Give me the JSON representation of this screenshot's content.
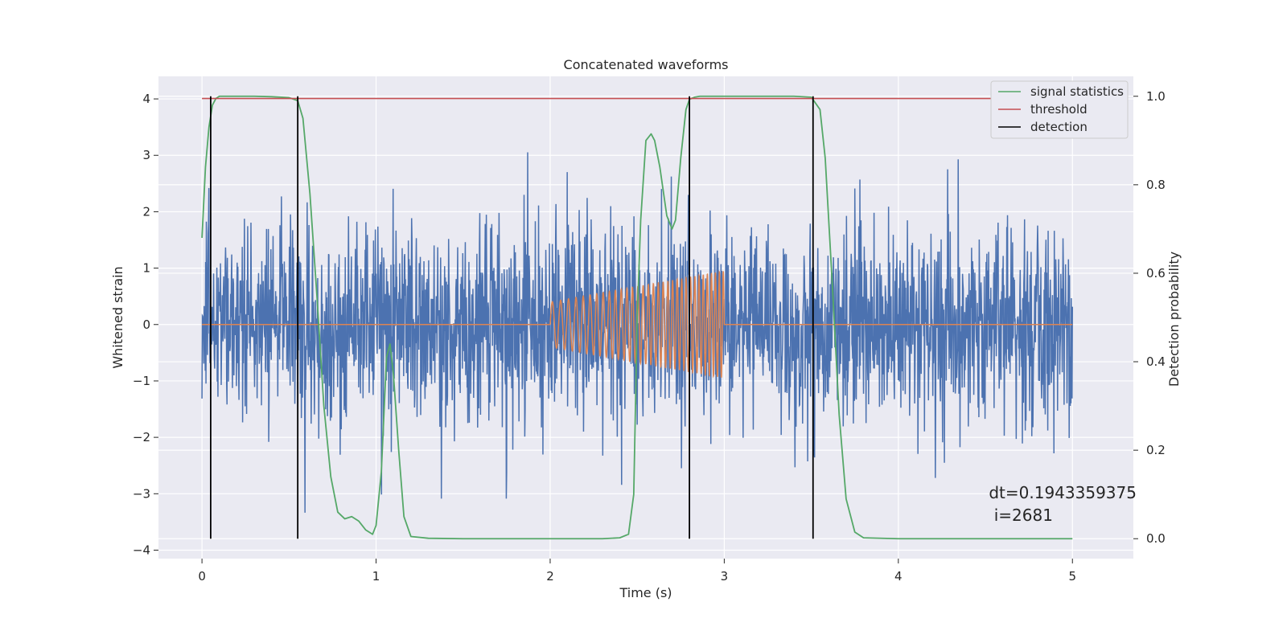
{
  "chart_data": {
    "type": "line",
    "title": "Concatenated waveforms",
    "xlabel": "Time (s)",
    "ylabel": "Whitened strain",
    "y2label": "Detection probability",
    "xlim": [
      -0.25,
      5.35
    ],
    "ylim": [
      -4.15,
      4.4
    ],
    "y2lim": [
      -0.045,
      1.045
    ],
    "xticks": [
      0,
      1,
      2,
      3,
      4,
      5
    ],
    "xtick_labels": [
      "0",
      "1",
      "2",
      "3",
      "4",
      "5"
    ],
    "yticks": [
      -4,
      -3,
      -2,
      -1,
      0,
      1,
      2,
      3,
      4
    ],
    "ytick_labels": [
      "−4",
      "−3",
      "−2",
      "−1",
      "0",
      "1",
      "2",
      "3",
      "4"
    ],
    "y2ticks": [
      0.0,
      0.2,
      0.4,
      0.6,
      0.8,
      1.0
    ],
    "y2tick_labels": [
      "0.0",
      "0.2",
      "0.4",
      "0.6",
      "0.8",
      "1.0"
    ],
    "grid": true,
    "legend_position": "top-right",
    "annotation": {
      "line1": "dt=0.1943359375",
      "line2": " i=2681",
      "x": 4.52,
      "y": -3.08
    },
    "series": [
      {
        "name": "",
        "kind": "noise",
        "axis": "left",
        "color": "#4c72b0",
        "x_range": [
          0,
          5
        ],
        "typical_amplitude": 1.0,
        "peak_max": 4.0,
        "peak_min": -3.75
      },
      {
        "name": "",
        "kind": "chirp",
        "axis": "left",
        "color": "#dd8452",
        "x_range": [
          0,
          5
        ],
        "chirp_start": 2.0,
        "chirp_end": 3.0,
        "start_amplitude": 0.4,
        "end_amplitude": 0.95,
        "start_frequency_hz": 20,
        "end_frequency_hz": 45
      },
      {
        "name": "signal statistics",
        "axis": "right",
        "color": "#55a868",
        "x": [
          0.0,
          0.02,
          0.04,
          0.06,
          0.08,
          0.1,
          0.2,
          0.3,
          0.4,
          0.5,
          0.55,
          0.58,
          0.62,
          0.66,
          0.7,
          0.74,
          0.78,
          0.82,
          0.86,
          0.9,
          0.94,
          0.98,
          1.0,
          1.03,
          1.06,
          1.08,
          1.1,
          1.13,
          1.16,
          1.2,
          1.3,
          1.5,
          2.0,
          2.3,
          2.4,
          2.45,
          2.48,
          2.5,
          2.52,
          2.55,
          2.58,
          2.6,
          2.63,
          2.67,
          2.7,
          2.72,
          2.75,
          2.78,
          2.8,
          2.83,
          2.86,
          3.0,
          3.2,
          3.4,
          3.5,
          3.55,
          3.58,
          3.62,
          3.66,
          3.7,
          3.75,
          3.8,
          4.0,
          4.5,
          5.0
        ],
        "y": [
          0.68,
          0.84,
          0.93,
          0.98,
          0.995,
          1.0,
          1.0,
          1.0,
          0.999,
          0.997,
          0.99,
          0.95,
          0.78,
          0.55,
          0.3,
          0.14,
          0.06,
          0.045,
          0.05,
          0.04,
          0.02,
          0.01,
          0.03,
          0.15,
          0.41,
          0.44,
          0.37,
          0.2,
          0.05,
          0.005,
          0.001,
          0.0,
          0.0,
          0.0,
          0.002,
          0.01,
          0.1,
          0.5,
          0.72,
          0.9,
          0.915,
          0.9,
          0.84,
          0.73,
          0.7,
          0.72,
          0.86,
          0.97,
          0.993,
          0.998,
          1.0,
          1.0,
          1.0,
          1.0,
          0.998,
          0.97,
          0.86,
          0.58,
          0.28,
          0.09,
          0.015,
          0.002,
          0.0,
          0.0,
          0.0
        ]
      },
      {
        "name": "threshold",
        "axis": "right",
        "color": "#c44e52",
        "x": [
          0,
          5
        ],
        "y": [
          0.995,
          0.995
        ]
      },
      {
        "name": "detection",
        "axis": "right",
        "color": "#000000",
        "vlines": [
          0.05,
          0.55,
          2.8,
          3.51
        ],
        "ymin": 0.0,
        "ymax": 1.0
      }
    ]
  }
}
